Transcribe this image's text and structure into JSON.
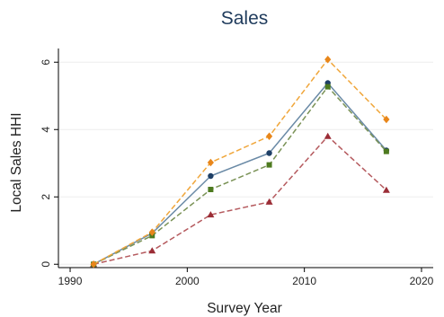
{
  "chart_data": {
    "type": "line",
    "title": "Sales",
    "xlabel": "Survey Year",
    "ylabel": "Local Sales HHI",
    "xlim": [
      1989,
      2021
    ],
    "ylim": [
      -0.1,
      6.3
    ],
    "xticks": [
      1990,
      2000,
      2010,
      2020
    ],
    "yticks": [
      0,
      2,
      4,
      6
    ],
    "grid": "horizontal",
    "legend": "none",
    "x": [
      1992,
      1997,
      2002,
      2007,
      2012,
      2017
    ],
    "series": [
      {
        "color": "#6a8aa6",
        "marker": "circle",
        "marker_color": "#1e3f66",
        "dash": "solid",
        "values": [
          0.0,
          0.92,
          2.62,
          3.3,
          5.38,
          3.38
        ]
      },
      {
        "color": "#b55a5e",
        "marker": "triangle",
        "marker_color": "#9b2d36",
        "dash": "dashed",
        "values": [
          0.0,
          0.4,
          1.47,
          1.85,
          3.8,
          2.2
        ]
      },
      {
        "color": "#7a9256",
        "marker": "square",
        "marker_color": "#4d7a1f",
        "dash": "dashed",
        "values": [
          0.0,
          0.85,
          2.22,
          2.95,
          5.27,
          3.35
        ]
      },
      {
        "color": "#f0a63a",
        "marker": "diamond",
        "marker_color": "#e8861a",
        "dash": "dashed",
        "values": [
          0.0,
          0.95,
          3.02,
          3.8,
          6.08,
          4.3
        ]
      }
    ]
  }
}
